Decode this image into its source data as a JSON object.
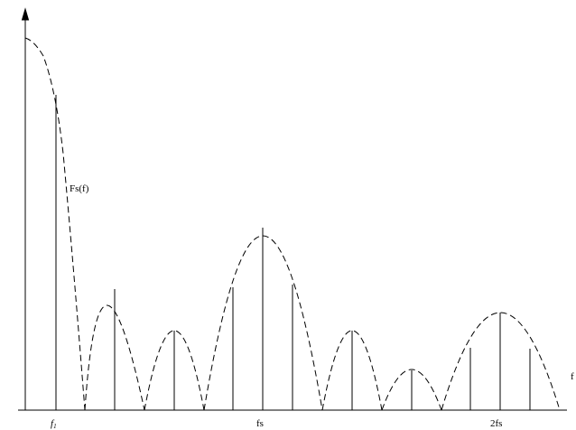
{
  "diagram": {
    "curve_label": "Fs(f)",
    "axis_label_f": "f",
    "tick_f1": "f",
    "tick_f1_sub": "1",
    "tick_fs": "fs",
    "tick_2fs": "2fs",
    "colors": {
      "stroke": "#000000",
      "background": "#ffffff"
    }
  }
}
